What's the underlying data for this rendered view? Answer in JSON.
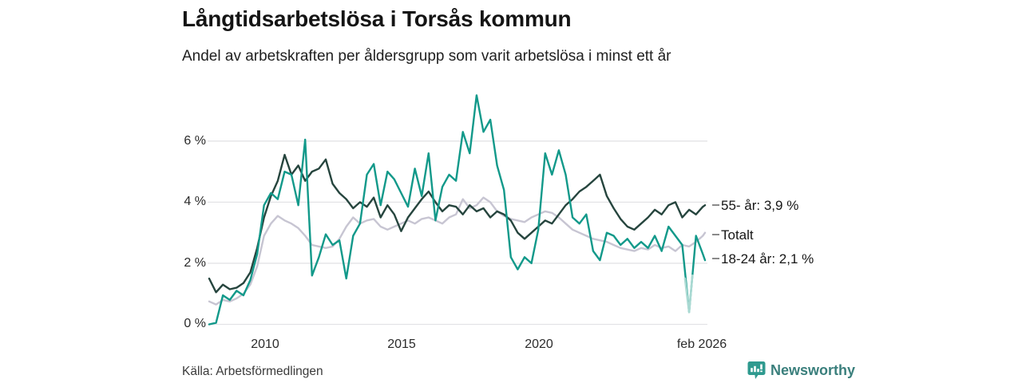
{
  "header": {
    "title": "Långtidsarbetslösa i Torsås kommun",
    "subtitle": "Andel av arbetskraften per åldersgrupp som varit arbetslösa i minst ett år"
  },
  "footer": {
    "source": "Källa: Arbetsförmedlingen",
    "brand": "Newsworthy",
    "brand_color": "#3a7f7c",
    "brand_icon_color": "#2f9a8f"
  },
  "chart_data": {
    "type": "line",
    "title": "Långtidsarbetslösa i Torsås kommun",
    "xlabel": "",
    "ylabel": "",
    "grid": true,
    "gridline_color": "#e3e3e6",
    "x_range": [
      2008.0,
      2026.08
    ],
    "y_range": [
      0,
      7.8
    ],
    "y_ticks": [
      {
        "label": "6 %",
        "value": 6
      },
      {
        "label": "4 %",
        "value": 4
      },
      {
        "label": "2 %",
        "value": 2
      },
      {
        "label": "0 %",
        "value": 0
      }
    ],
    "x_ticks": [
      {
        "label": "2010",
        "value": 2010
      },
      {
        "label": "2015",
        "value": 2015
      },
      {
        "label": "2020",
        "value": 2020
      },
      {
        "label": "feb 2026",
        "value": 2026.08
      }
    ],
    "x": [
      2008,
      2008.25,
      2008.5,
      2008.75,
      2009,
      2009.25,
      2009.5,
      2009.75,
      2010,
      2010.25,
      2010.5,
      2010.75,
      2011,
      2011.25,
      2011.5,
      2011.75,
      2012,
      2012.25,
      2012.5,
      2012.75,
      2013,
      2013.25,
      2013.5,
      2013.75,
      2014,
      2014.25,
      2014.5,
      2014.75,
      2015,
      2015.25,
      2015.5,
      2015.75,
      2016,
      2016.25,
      2016.5,
      2016.75,
      2017,
      2017.25,
      2017.5,
      2017.75,
      2018,
      2018.25,
      2018.5,
      2018.75,
      2019,
      2019.25,
      2019.5,
      2019.75,
      2020,
      2020.25,
      2020.5,
      2020.75,
      2021,
      2021.25,
      2021.5,
      2021.75,
      2022,
      2022.25,
      2022.5,
      2022.75,
      2023,
      2023.25,
      2023.5,
      2023.75,
      2024,
      2024.25,
      2024.5,
      2024.75,
      2025,
      2025.25,
      2025.5,
      2025.75,
      2026,
      2026.08
    ],
    "series": [
      {
        "name": "55- år",
        "end_label": "55- år: 3,9 %",
        "end_value": "3,9 %",
        "color": "#26453e",
        "values": [
          1.5,
          1.05,
          1.3,
          1.15,
          1.2,
          1.35,
          1.7,
          2.5,
          3.5,
          4.2,
          4.7,
          5.55,
          4.9,
          5.2,
          4.7,
          5.0,
          5.1,
          5.4,
          4.6,
          4.3,
          4.1,
          3.8,
          4.0,
          3.85,
          4.15,
          3.5,
          3.9,
          3.6,
          3.05,
          3.5,
          3.8,
          4.1,
          4.35,
          4.0,
          3.7,
          3.9,
          3.85,
          3.6,
          3.9,
          3.7,
          3.8,
          3.5,
          3.7,
          3.6,
          3.4,
          3.0,
          2.8,
          3.0,
          3.2,
          3.4,
          3.3,
          3.6,
          3.9,
          4.1,
          4.35,
          4.5,
          4.7,
          4.9,
          4.2,
          3.8,
          3.45,
          3.2,
          3.1,
          3.3,
          3.5,
          3.75,
          3.6,
          3.9,
          4.0,
          3.5,
          3.75,
          3.6,
          3.85,
          3.9
        ]
      },
      {
        "name": "Totalt",
        "end_label": "Totalt",
        "end_value": "",
        "color": "#c7c5d2",
        "values": [
          0.75,
          0.65,
          0.8,
          0.75,
          0.85,
          1.0,
          1.3,
          1.9,
          2.9,
          3.3,
          3.55,
          3.4,
          3.3,
          3.15,
          2.9,
          2.6,
          2.55,
          2.5,
          2.55,
          2.8,
          3.2,
          3.5,
          3.3,
          3.4,
          3.45,
          3.2,
          3.1,
          3.2,
          3.3,
          3.4,
          3.3,
          3.45,
          3.5,
          3.4,
          3.3,
          3.5,
          3.6,
          4.1,
          3.8,
          3.9,
          4.15,
          4.0,
          3.7,
          3.55,
          3.45,
          3.4,
          3.35,
          3.5,
          3.6,
          3.7,
          3.65,
          3.5,
          3.3,
          3.1,
          3.0,
          2.9,
          2.8,
          2.75,
          2.7,
          2.6,
          2.5,
          2.45,
          2.4,
          2.5,
          2.45,
          2.6,
          2.5,
          2.55,
          2.4,
          2.6,
          2.55,
          2.7,
          2.9,
          3.0
        ]
      },
      {
        "name": "18-24 år",
        "end_label": "18-24 år: 2,1 %",
        "end_value": "2,1 %",
        "color": "#12998a",
        "values": [
          0.0,
          0.05,
          0.95,
          0.8,
          1.1,
          0.95,
          1.45,
          2.3,
          3.9,
          4.3,
          4.1,
          5.0,
          4.9,
          3.9,
          6.05,
          1.6,
          2.2,
          2.95,
          2.6,
          2.75,
          1.5,
          2.9,
          3.3,
          4.9,
          5.25,
          3.9,
          5.0,
          4.75,
          4.3,
          3.85,
          5.1,
          4.2,
          5.6,
          3.4,
          4.5,
          4.9,
          4.7,
          6.3,
          5.6,
          7.5,
          6.3,
          6.7,
          5.2,
          4.4,
          2.2,
          1.8,
          2.2,
          2.0,
          3.1,
          5.6,
          4.9,
          5.7,
          4.9,
          3.5,
          3.3,
          3.6,
          2.4,
          2.1,
          3.0,
          2.9,
          2.6,
          2.8,
          2.5,
          2.7,
          2.5,
          2.9,
          2.4,
          3.2,
          2.9,
          2.6,
          0.4,
          2.9,
          2.3,
          2.1
        ]
      }
    ],
    "faded_segment": {
      "series": "18-24 år",
      "color": "#a9d9d2",
      "x": [
        2025.35,
        2025.5,
        2025.62
      ],
      "values": [
        1.5,
        0.4,
        1.6
      ]
    },
    "legend_position": "right-edge-labels"
  }
}
